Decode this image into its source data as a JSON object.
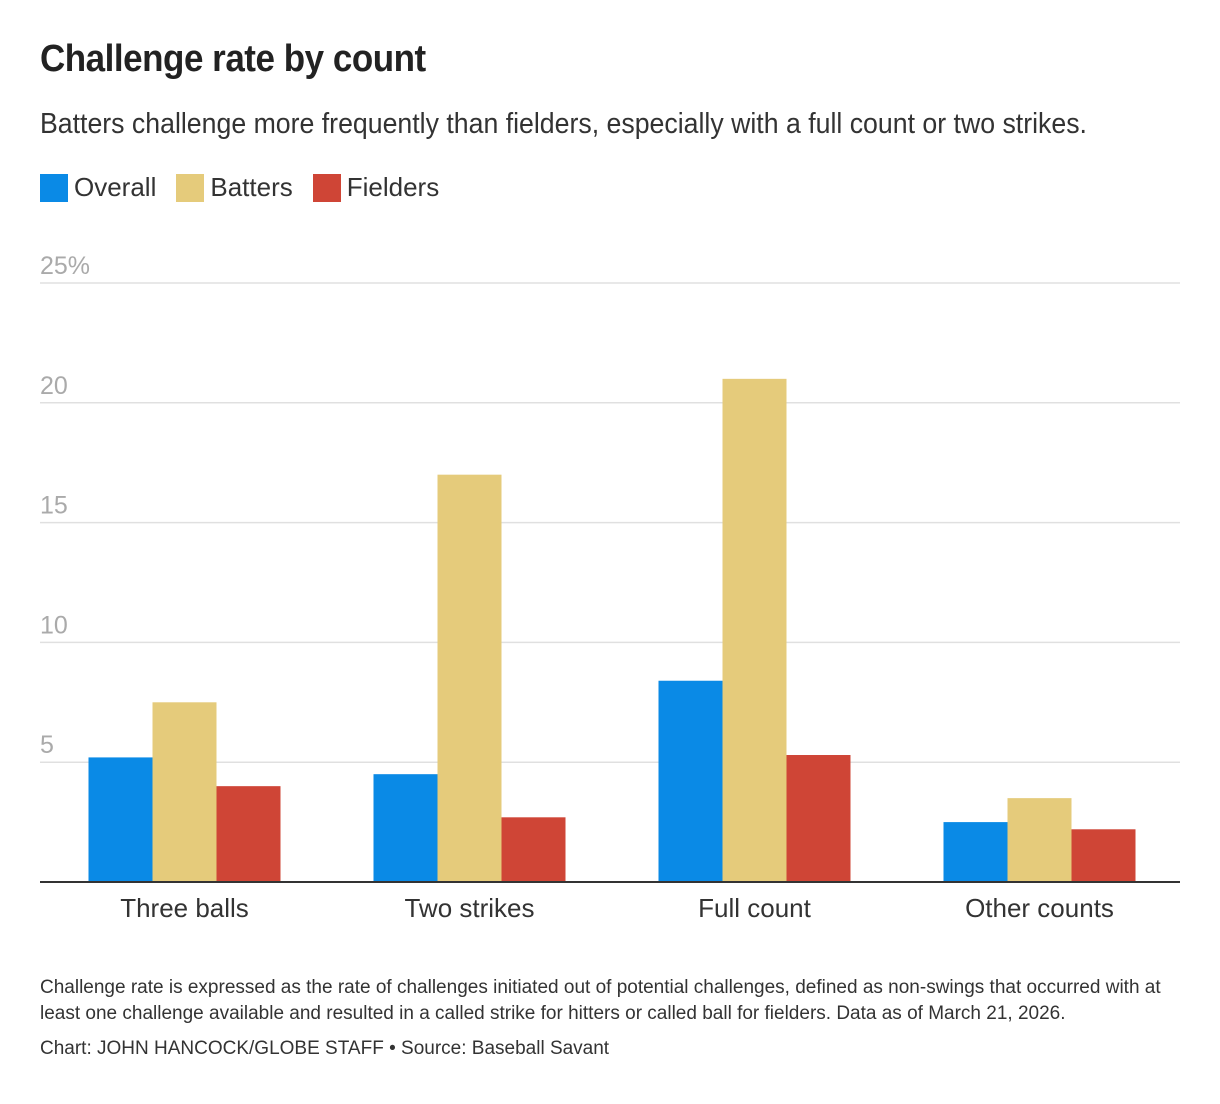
{
  "chart_data": {
    "type": "bar",
    "title": "Challenge rate by count",
    "subtitle": "Batters challenge more frequently than fielders, especially with a full count or two strikes.",
    "categories": [
      "Three balls",
      "Two strikes",
      "Full count",
      "Other counts"
    ],
    "series": [
      {
        "name": "Overall",
        "color": "#0a8ae6",
        "values": [
          5.2,
          4.5,
          8.4,
          2.5
        ]
      },
      {
        "name": "Batters",
        "color": "#e5cb7b",
        "values": [
          7.5,
          17.0,
          21.0,
          3.5
        ]
      },
      {
        "name": "Fielders",
        "color": "#cf4536",
        "values": [
          4.0,
          2.7,
          5.3,
          2.2
        ]
      }
    ],
    "ylim": [
      0,
      25
    ],
    "yticks": [
      5,
      10,
      15,
      20,
      25
    ],
    "ytick_labels": [
      "5",
      "10",
      "15",
      "20",
      "25%"
    ],
    "grid": true,
    "legend_position": "top-left",
    "xlabel": "",
    "ylabel": ""
  },
  "note": "Challenge rate is expressed as the rate of challenges initiated out of potential challenges, defined as non-swings that occurred with at least one challenge available and resulted in a called strike for hitters or called ball for fielders. Data as of March 21, 2026.",
  "credit": "Chart: JOHN HANCOCK/GLOBE STAFF • Source: Baseball Savant"
}
